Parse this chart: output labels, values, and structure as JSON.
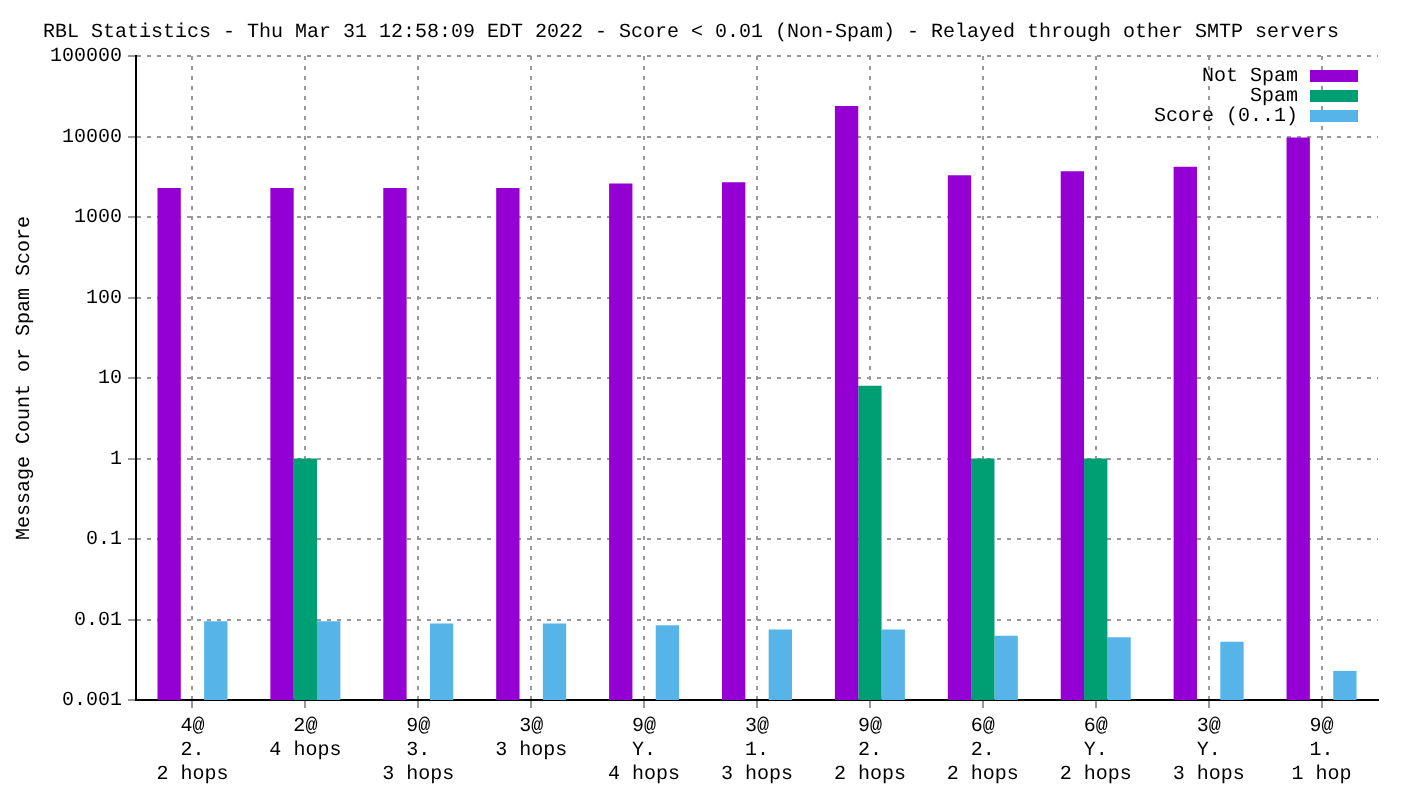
{
  "chart_data": {
    "type": "bar",
    "title": "RBL Statistics - Thu Mar 31 12:58:09 EDT 2022 - Score < 0.01 (Non-Spam) - Relayed through other SMTP servers",
    "ylabel": "Message Count or Spam Score",
    "categories": [
      "4@\n2.\n2 hops",
      "2@\n4 hops",
      "9@\n3.\n3 hops",
      "3@\n3 hops",
      "9@\nY.\n4 hops",
      "3@\n1.\n3 hops",
      "9@\n2.\n2 hops",
      "6@\n2.\n2 hops",
      "6@\nY.\n2 hops",
      "3@\nY.\n3 hops",
      "9@\n1.\n1 hop"
    ],
    "series": [
      {
        "name": "Not Spam",
        "color": "#9400d3",
        "values": [
          2300,
          2300,
          2300,
          2300,
          2600,
          2700,
          24000,
          3300,
          3700,
          4200,
          9700
        ]
      },
      {
        "name": "Spam",
        "color": "#009e73",
        "values": [
          null,
          1,
          null,
          null,
          null,
          null,
          8,
          1,
          1,
          null,
          null
        ]
      },
      {
        "name": "Score (0..1)",
        "color": "#56b4e9",
        "values": [
          0.0095,
          0.0095,
          0.0089,
          0.0089,
          0.0085,
          0.0075,
          0.0075,
          0.0063,
          0.006,
          0.0053,
          0.0023
        ]
      }
    ],
    "log": "y",
    "ylim": [
      0.001,
      100000
    ],
    "yticks": [
      0.001,
      0.01,
      0.1,
      1,
      10,
      100,
      1000,
      10000,
      100000
    ],
    "grid": true,
    "legend": "top right"
  }
}
